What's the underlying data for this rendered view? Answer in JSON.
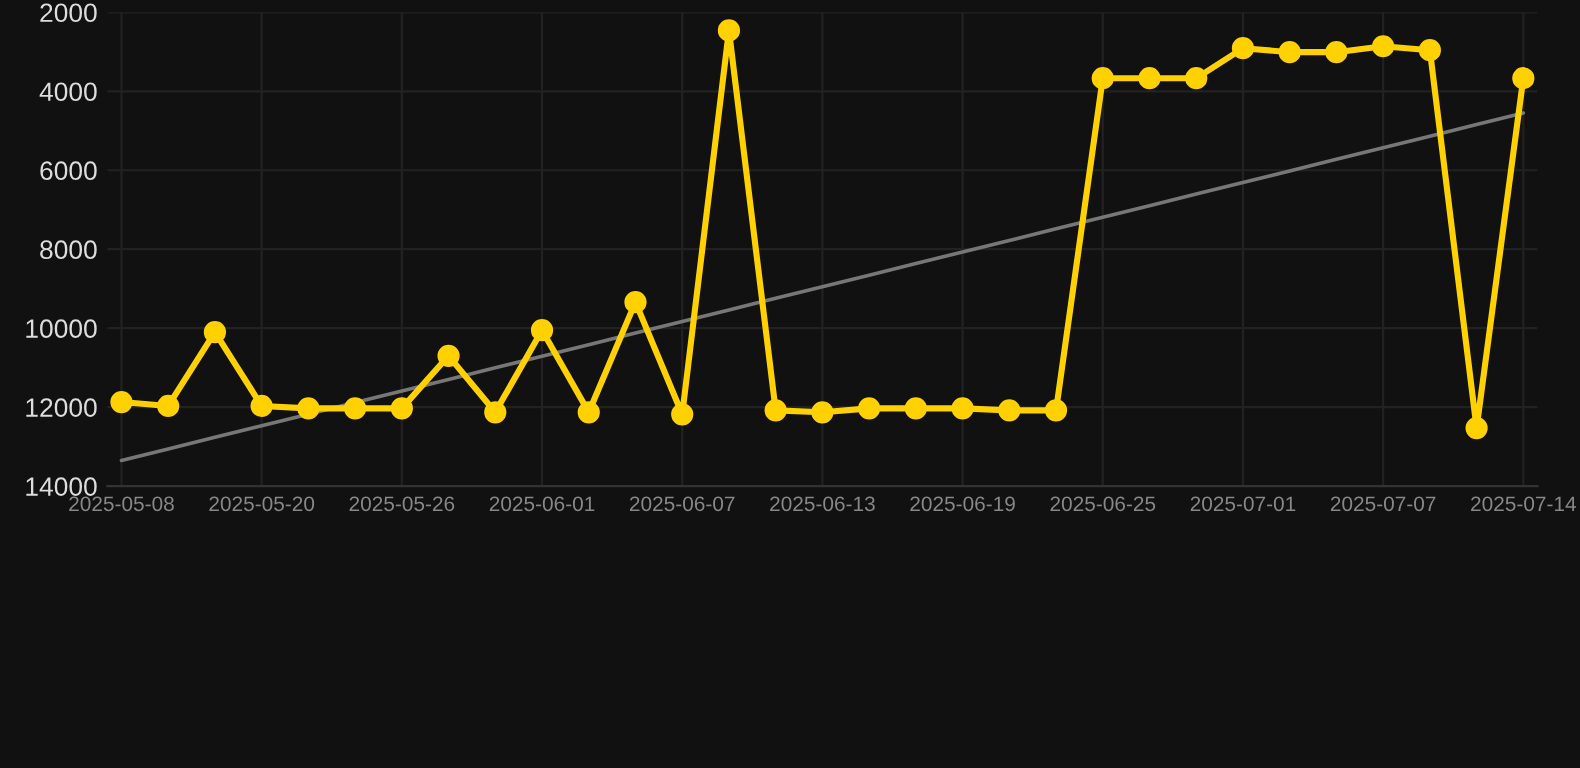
{
  "chart_data": {
    "type": "line",
    "categories": [
      "2025-05-08",
      null,
      null,
      "2025-05-20",
      null,
      null,
      "2025-05-26",
      null,
      null,
      "2025-06-01",
      null,
      null,
      "2025-06-07",
      null,
      null,
      "2025-06-13",
      null,
      null,
      "2025-06-19",
      null,
      null,
      "2025-06-25",
      null,
      null,
      "2025-07-01",
      null,
      null,
      "2025-07-07",
      null,
      null,
      "2025-07-14"
    ],
    "series": [
      {
        "color": "#ffd100",
        "marker": "circle",
        "values": [
          11870,
          11970,
          10100,
          11970,
          12030,
          12030,
          12030,
          10700,
          12130,
          10050,
          12130,
          9340,
          12180,
          2460,
          12080,
          12130,
          12030,
          12030,
          12030,
          12080,
          12080,
          3670,
          3670,
          3670,
          2910,
          3010,
          3010,
          2860,
          2960,
          12530,
          3670
        ]
      },
      {
        "type": "line",
        "color": "#777777",
        "marker": "none",
        "values": [
          13350,
          13060,
          12760,
          12470,
          12180,
          11880,
          11590,
          11300,
          11000,
          10710,
          10420,
          10120,
          9830,
          9540,
          9240,
          8950,
          8660,
          8360,
          8070,
          7780,
          7480,
          7190,
          6900,
          6600,
          6310,
          6020,
          5720,
          5430,
          5140,
          4840,
          4550
        ]
      }
    ],
    "ylim": [
      14000,
      2000
    ],
    "yticks": [
      2000,
      4000,
      6000,
      8000,
      10000,
      12000,
      14000
    ],
    "grid": true
  }
}
